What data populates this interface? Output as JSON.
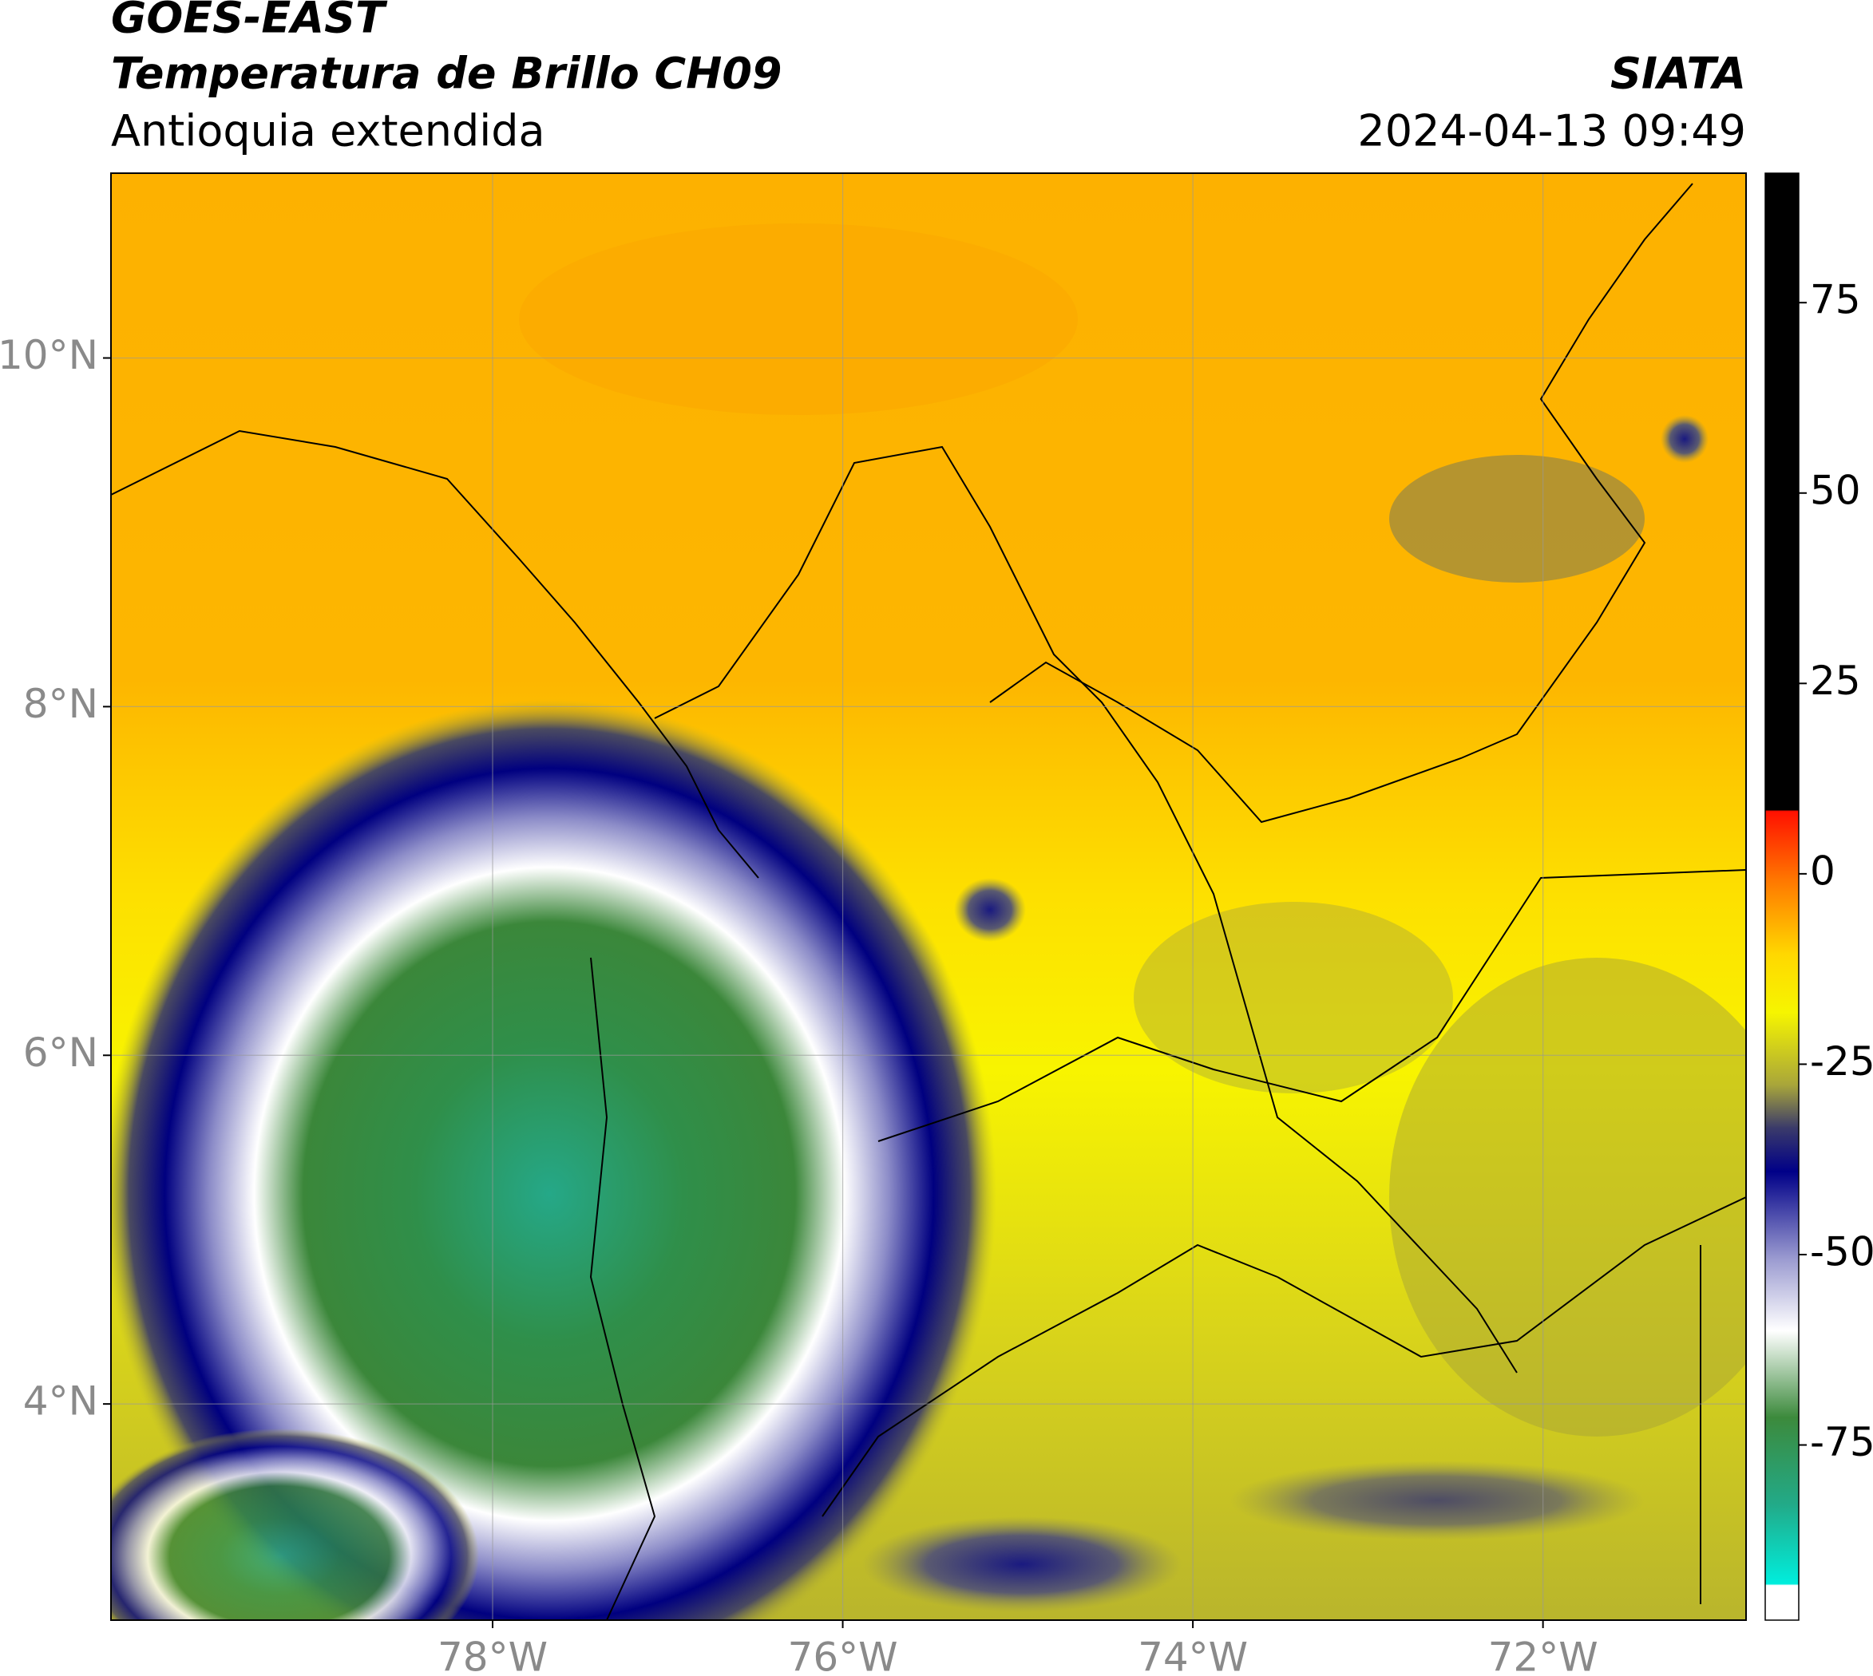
{
  "header": {
    "title": "GOES-EAST",
    "subtitle": "Temperatura de Brillo CH09",
    "region": "Antioquia extendida",
    "source": "SIATA",
    "datetime": "2024-04-13 09:49"
  },
  "map": {
    "xlim": [
      -80.18,
      -70.84
    ],
    "ylim": [
      2.76,
      11.06
    ],
    "xticks": [
      {
        "value": -78,
        "label": "78°W"
      },
      {
        "value": -76,
        "label": "76°W"
      },
      {
        "value": -74,
        "label": "74°W"
      },
      {
        "value": -72,
        "label": "72°W"
      }
    ],
    "yticks": [
      {
        "value": 4,
        "label": "4°N"
      },
      {
        "value": 6,
        "label": "6°N"
      },
      {
        "value": 8,
        "label": "8°N"
      },
      {
        "value": 10,
        "label": "10°N"
      }
    ],
    "grid": true
  },
  "colorbar": {
    "lim": [
      -98,
      92
    ],
    "ticks": [
      -75,
      -50,
      -25,
      0,
      25,
      50,
      75
    ]
  }
}
